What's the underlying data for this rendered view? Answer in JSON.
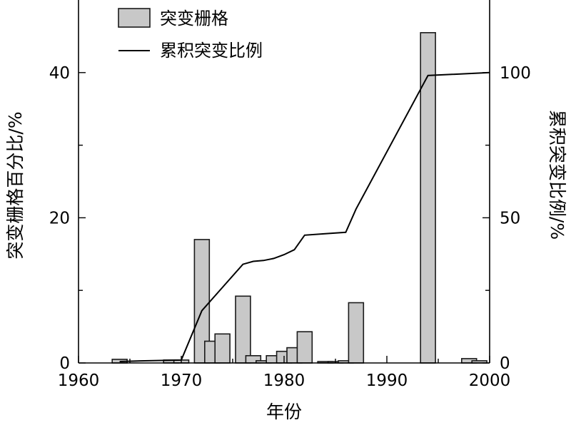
{
  "chart_data": {
    "type": "bar",
    "xlabel": "年份",
    "ylabel": "突变栅格百分比/%",
    "y2label": "累积突变比例/%",
    "xlim": [
      1960,
      2000
    ],
    "ylim": [
      0,
      50
    ],
    "y2lim": [
      0,
      125
    ],
    "x_ticks": [
      1960,
      1970,
      1980,
      1990,
      2000
    ],
    "y_ticks": [
      0,
      20,
      40
    ],
    "y2_ticks": [
      0,
      50,
      100
    ],
    "legend_position": "top-center",
    "series": [
      {
        "name": "突变栅格",
        "type": "bar",
        "axis": "left",
        "x": [
          1964,
          1969,
          1970,
          1972,
          1973,
          1974,
          1976,
          1977,
          1978,
          1979,
          1980,
          1981,
          1982,
          1984,
          1985,
          1986,
          1987,
          1994,
          1998,
          1999
        ],
        "values": [
          0.5,
          0.4,
          0.4,
          17,
          3,
          4,
          9.2,
          1,
          0.3,
          1,
          1.6,
          2.1,
          4.3,
          0.2,
          0.2,
          0.3,
          8.3,
          45.5,
          0.6,
          0.3
        ]
      },
      {
        "name": "累积突变比例",
        "type": "line",
        "axis": "right",
        "x": [
          1964,
          1966,
          1970,
          1972,
          1974,
          1976,
          1977,
          1978,
          1979,
          1980,
          1981,
          1982,
          1984,
          1986,
          1987,
          1994,
          2000
        ],
        "values": [
          0.5,
          0.7,
          1,
          18,
          26,
          34,
          35,
          35.3,
          36,
          37.3,
          39,
          44,
          44.5,
          45,
          53,
          99,
          100
        ]
      }
    ],
    "colors": {
      "bar_fill": "#c8c8c8",
      "bar_stroke": "#1a1a1a",
      "line": "#000000"
    }
  }
}
